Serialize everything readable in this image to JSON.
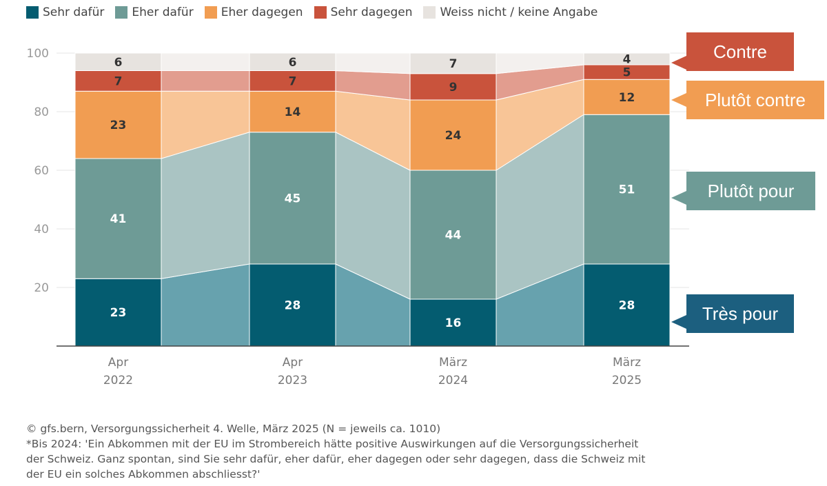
{
  "legend": [
    {
      "label": "Sehr dafür",
      "color": "#045c70"
    },
    {
      "label": "Eher dafür",
      "color": "#6e9b96"
    },
    {
      "label": "Eher dagegen",
      "color": "#f19d52"
    },
    {
      "label": "Sehr dagegen",
      "color": "#c9533c"
    },
    {
      "label": "Weiss nicht / keine Angabe",
      "color": "#e7e3df"
    }
  ],
  "chart_data": {
    "type": "bar",
    "stacked": true,
    "categories": [
      [
        "Apr",
        "2022"
      ],
      [
        "Apr",
        "2023"
      ],
      [
        "März",
        "2024"
      ],
      [
        "März",
        "2025"
      ]
    ],
    "ylim": [
      0,
      100
    ],
    "yticks": [
      20,
      40,
      60,
      80,
      100
    ],
    "series": [
      {
        "name": "Sehr dafür",
        "color": "#045c70",
        "light": "#67a2ae",
        "values": [
          23,
          28,
          16,
          28
        ]
      },
      {
        "name": "Eher dafür",
        "color": "#6e9b96",
        "light": "#aac4c3",
        "values": [
          41,
          45,
          44,
          51
        ]
      },
      {
        "name": "Eher dagegen",
        "color": "#f19d52",
        "light": "#f8c597",
        "values": [
          23,
          14,
          24,
          12
        ]
      },
      {
        "name": "Sehr dagegen",
        "color": "#c9533c",
        "light": "#e29d8f",
        "values": [
          7,
          7,
          9,
          5
        ]
      },
      {
        "name": "Weiss nicht / keine Angabe",
        "color": "#e7e3df",
        "light": "#f3f0ee",
        "values": [
          6,
          6,
          7,
          4
        ]
      }
    ]
  },
  "callouts": [
    {
      "label": "Contre",
      "color": "#c9533c"
    },
    {
      "label": "Plutôt contre",
      "color": "#f19d52"
    },
    {
      "label": "Plutôt pour",
      "color": "#6e9b96"
    },
    {
      "label": "Très pour",
      "color": "#1c5f7f"
    }
  ],
  "footnote": {
    "source": "© gfs.bern, Versorgungssicherheit 4. Welle, März 2025 (N = jeweils ca. 1010)",
    "line1": "*Bis 2024: 'Ein Abkommen mit der EU im Strombereich hätte positive Auswirkungen auf die Versorgungssicherheit",
    "line2": "der Schweiz. Ganz spontan, sind Sie sehr dafür, eher dafür, eher dagegen oder sehr dagegen, dass die Schweiz mit",
    "line3": "der EU ein solches Abkommen abschliesst?'"
  }
}
